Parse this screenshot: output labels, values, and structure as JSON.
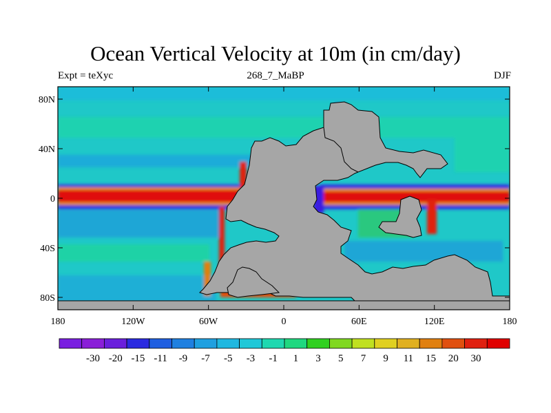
{
  "title": "Ocean Vertical Velocity at 10m (in cm/day)",
  "left_label": "Expt = teXyc",
  "center_label": "268_7_MaBP",
  "right_label": "DJF",
  "map": {
    "lon_range": [
      -180,
      180
    ],
    "lat_range": [
      -90,
      90
    ],
    "land_color": "#a6a6a6",
    "ocean_color": "#1fc8c8",
    "lat_ticks": [
      {
        "value": 80,
        "label": "80N"
      },
      {
        "value": 40,
        "label": "40N"
      },
      {
        "value": 0,
        "label": "0"
      },
      {
        "value": -40,
        "label": "40S"
      },
      {
        "value": -80,
        "label": "80S"
      }
    ],
    "lon_ticks": [
      {
        "value": -180,
        "label": "180"
      },
      {
        "value": -120,
        "label": "120W"
      },
      {
        "value": -60,
        "label": "60W"
      },
      {
        "value": 0,
        "label": "0"
      },
      {
        "value": 60,
        "label": "60E"
      },
      {
        "value": 120,
        "label": "120E"
      },
      {
        "value": 180,
        "label": "180"
      }
    ]
  },
  "colorbar": {
    "colors": [
      "#7a1fe0",
      "#8a1fd8",
      "#6a1fdc",
      "#2a2ae0",
      "#1f5fe0",
      "#1f80e0",
      "#1fa0e0",
      "#1fb8e0",
      "#1fc8d8",
      "#1fd8b0",
      "#1fd880",
      "#30d020",
      "#80d820",
      "#c0e020",
      "#e0d020",
      "#e0b020",
      "#e08010",
      "#e05010",
      "#e02010",
      "#e00000"
    ],
    "labels": [
      "-30",
      "-20",
      "-15",
      "-11",
      "-9",
      "-7",
      "-5",
      "-3",
      "-1",
      "1",
      "3",
      "5",
      "7",
      "9",
      "11",
      "15",
      "20",
      "30"
    ]
  }
}
